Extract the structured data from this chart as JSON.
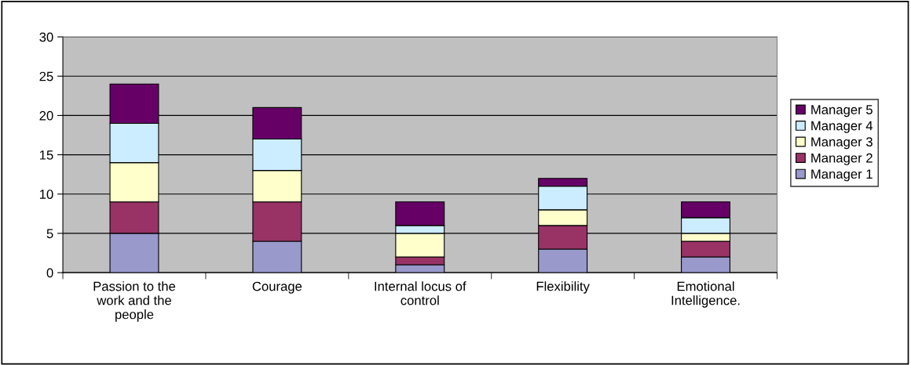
{
  "chart_data": {
    "type": "bar",
    "stacked": true,
    "categories": [
      "Passion to the work and the people",
      "Courage",
      "Internal locus of control",
      "Flexibility",
      "Emotional Intelligence."
    ],
    "series": [
      {
        "name": "Manager 1",
        "color": "#9999cc",
        "values": [
          5,
          4,
          1,
          3,
          2
        ]
      },
      {
        "name": "Manager 2",
        "color": "#993366",
        "values": [
          4,
          5,
          1,
          3,
          2
        ]
      },
      {
        "name": "Manager 3",
        "color": "#ffffcc",
        "values": [
          5,
          4,
          3,
          2,
          1
        ]
      },
      {
        "name": "Manager 4",
        "color": "#ccecff",
        "values": [
          5,
          4,
          1,
          3,
          2
        ]
      },
      {
        "name": "Manager 5",
        "color": "#660066",
        "values": [
          5,
          4,
          3,
          1,
          2
        ]
      }
    ],
    "ylim": [
      0,
      30
    ],
    "yticks": [
      0,
      5,
      10,
      15,
      20,
      25,
      30
    ],
    "grid": "y",
    "legend": "right"
  }
}
